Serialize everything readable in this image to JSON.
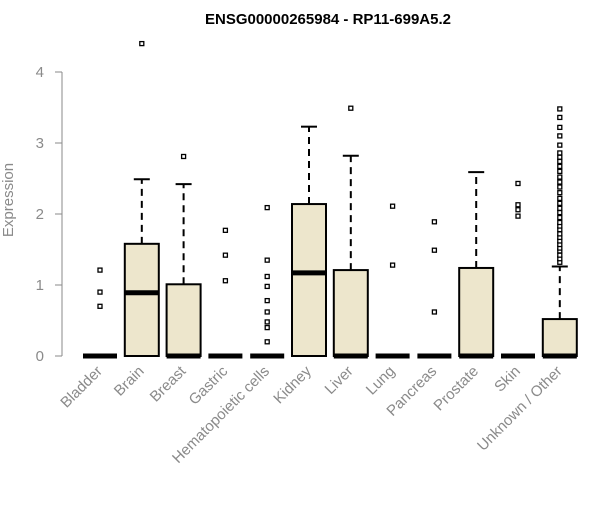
{
  "chart_data": {
    "type": "box",
    "title": "ENSG00000265984 - RP11-699A5.2",
    "ylabel": "Expression",
    "xlabel": "",
    "ylim": [
      0,
      4.4
    ],
    "yticks": [
      0,
      1,
      2,
      3,
      4
    ],
    "grid": false,
    "box_fill": "#ede6cc",
    "median_color": "#000000",
    "categories": [
      "Bladder",
      "Brain",
      "Breast",
      "Gastric",
      "Hematopoietic cells",
      "Kidney",
      "Liver",
      "Lung",
      "Pancreas",
      "Prostate",
      "Skin",
      "Unknown / Other"
    ],
    "boxes": [
      {
        "category": "Bladder",
        "q1": 0,
        "median": 0,
        "q3": 0,
        "whisker_low": 0,
        "whisker_high": 0,
        "outliers": [
          0.7,
          0.9,
          1.21
        ]
      },
      {
        "category": "Brain",
        "q1": 0,
        "median": 0.89,
        "q3": 1.58,
        "whisker_low": 0,
        "whisker_high": 2.49,
        "outliers": [
          4.4
        ]
      },
      {
        "category": "Breast",
        "q1": 0,
        "median": 0,
        "q3": 1.01,
        "whisker_low": 0,
        "whisker_high": 2.42,
        "outliers": [
          2.81
        ]
      },
      {
        "category": "Gastric",
        "q1": 0,
        "median": 0,
        "q3": 0,
        "whisker_low": 0,
        "whisker_high": 0,
        "outliers": [
          1.06,
          1.42,
          1.77
        ]
      },
      {
        "category": "Hematopoietic cells",
        "q1": 0,
        "median": 0,
        "q3": 0,
        "whisker_low": 0,
        "whisker_high": 0,
        "outliers": [
          0.2,
          0.4,
          0.48,
          0.62,
          0.78,
          0.98,
          1.12,
          1.35,
          2.09
        ]
      },
      {
        "category": "Kidney",
        "q1": 0,
        "median": 1.17,
        "q3": 2.14,
        "whisker_low": 0,
        "whisker_high": 3.23,
        "outliers": []
      },
      {
        "category": "Liver",
        "q1": 0,
        "median": 0,
        "q3": 1.21,
        "whisker_low": 0,
        "whisker_high": 2.82,
        "outliers": [
          3.49
        ]
      },
      {
        "category": "Lung",
        "q1": 0,
        "median": 0,
        "q3": 0,
        "whisker_low": 0,
        "whisker_high": 0,
        "outliers": [
          1.28,
          2.11
        ]
      },
      {
        "category": "Pancreas",
        "q1": 0,
        "median": 0,
        "q3": 0,
        "whisker_low": 0,
        "whisker_high": 0,
        "outliers": [
          0.62,
          1.49,
          1.89
        ]
      },
      {
        "category": "Prostate",
        "q1": 0,
        "median": 0,
        "q3": 1.24,
        "whisker_low": 0,
        "whisker_high": 2.59,
        "outliers": []
      },
      {
        "category": "Skin",
        "q1": 0,
        "median": 0,
        "q3": 0,
        "whisker_low": 0,
        "whisker_high": 0,
        "outliers": [
          1.97,
          2.06,
          2.13,
          2.43
        ]
      },
      {
        "category": "Unknown / Other",
        "q1": 0,
        "median": 0,
        "q3": 0.52,
        "whisker_low": 0,
        "whisker_high": 1.26,
        "outliers": [
          1.32,
          1.37,
          1.42,
          1.48,
          1.52,
          1.57,
          1.62,
          1.67,
          1.72,
          1.78,
          1.83,
          1.88,
          1.95,
          2.02,
          2.08,
          2.15,
          2.22,
          2.3,
          2.38,
          2.45,
          2.52,
          2.6,
          2.67,
          2.74,
          2.8,
          2.86,
          2.97,
          3.1,
          3.22,
          3.36,
          3.48
        ]
      }
    ]
  }
}
